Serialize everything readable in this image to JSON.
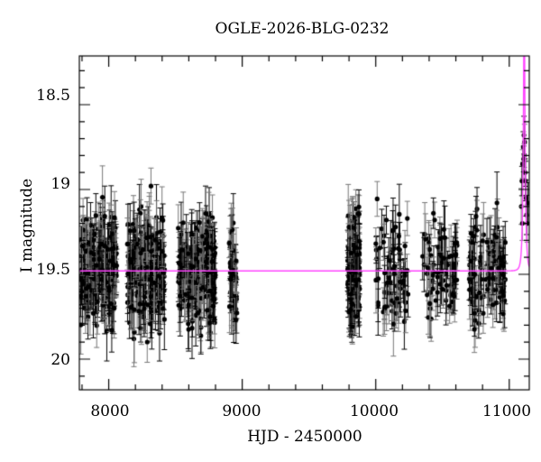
{
  "chart_data": {
    "type": "scatter",
    "title": "OGLE-2026-BLG-0232",
    "xlabel": "HJD - 2450000",
    "ylabel": "I magnitude",
    "xlim": [
      7780,
      11150
    ],
    "ylim": [
      20.17,
      18.3
    ],
    "y_inverted": true,
    "xticks": [
      8000,
      9000,
      10000,
      11000
    ],
    "yticks": [
      18.5,
      19,
      19.5,
      20
    ],
    "grid": false,
    "legend": null,
    "series": [
      {
        "name": "OGLE photometry (with error bars)",
        "kind": "points",
        "color": "#000000",
        "baseline_mag": 19.48,
        "scatter_mag": 0.15,
        "typical_error": 0.13,
        "seasons": [
          {
            "x_start": 7790,
            "x_end": 8060,
            "n": 220
          },
          {
            "x_start": 8140,
            "x_end": 8420,
            "n": 200
          },
          {
            "x_start": 8520,
            "x_end": 8800,
            "n": 200
          },
          {
            "x_start": 8900,
            "x_end": 8960,
            "n": 40
          },
          {
            "x_start": 9790,
            "x_end": 9880,
            "n": 160
          },
          {
            "x_start": 10000,
            "x_end": 10250,
            "n": 70
          },
          {
            "x_start": 10350,
            "x_end": 10610,
            "n": 70
          },
          {
            "x_start": 10700,
            "x_end": 10970,
            "n": 110
          }
        ],
        "event_points": [
          {
            "x": 11090,
            "y": 19.1
          },
          {
            "x": 11095,
            "y": 18.95
          },
          {
            "x": 11100,
            "y": 18.85
          },
          {
            "x": 11105,
            "y": 18.75
          },
          {
            "x": 11110,
            "y": 18.68
          },
          {
            "x": 11112,
            "y": 18.8
          },
          {
            "x": 11115,
            "y": 18.72
          },
          {
            "x": 11118,
            "y": 18.9
          },
          {
            "x": 11122,
            "y": 18.95
          },
          {
            "x": 11126,
            "y": 19.05
          },
          {
            "x": 11130,
            "y": 19.15
          },
          {
            "x": 11135,
            "y": 19.2
          },
          {
            "x": 11140,
            "y": 19.08
          },
          {
            "x": 11098,
            "y": 19.2
          },
          {
            "x": 11108,
            "y": 18.82
          }
        ]
      },
      {
        "name": "Microlensing model",
        "kind": "line",
        "color": "#ff44ff",
        "baseline_mag": 19.48,
        "t0": 11112,
        "u0": 0.22,
        "tE": 14
      }
    ]
  }
}
